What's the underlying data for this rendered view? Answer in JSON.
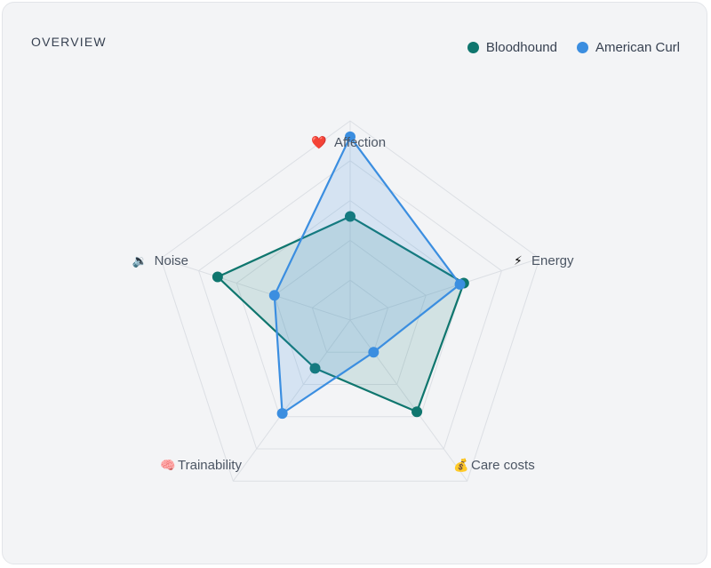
{
  "header": {
    "title": "OVERVIEW"
  },
  "colors": {
    "bloodhound": "#0f766e",
    "american_curl": "#3b8ee0",
    "grid": "#dcdfe4",
    "label": "#4b5563"
  },
  "chart_data": {
    "type": "radar",
    "title": "",
    "range": [
      0,
      10
    ],
    "grid_levels": 5,
    "legend_position": "top-right",
    "axes": [
      {
        "label": "Affection",
        "icon": "heart-icon",
        "glyph": "❤️"
      },
      {
        "label": "Energy",
        "icon": "lightning-icon",
        "glyph": "⚡"
      },
      {
        "label": "Care costs",
        "icon": "money-bag-icon",
        "glyph": "💰"
      },
      {
        "label": "Trainability",
        "icon": "brain-icon",
        "glyph": "🧠"
      },
      {
        "label": "Noise",
        "icon": "speaker-icon",
        "glyph": "🔉"
      }
    ],
    "series": [
      {
        "name": "Bloodhound",
        "color": "#0f766e",
        "values": [
          5.2,
          6.0,
          5.7,
          3.0,
          7.0
        ]
      },
      {
        "name": "American Curl",
        "color": "#3b8ee0",
        "values": [
          9.2,
          5.8,
          2.0,
          5.8,
          4.0
        ]
      }
    ]
  }
}
